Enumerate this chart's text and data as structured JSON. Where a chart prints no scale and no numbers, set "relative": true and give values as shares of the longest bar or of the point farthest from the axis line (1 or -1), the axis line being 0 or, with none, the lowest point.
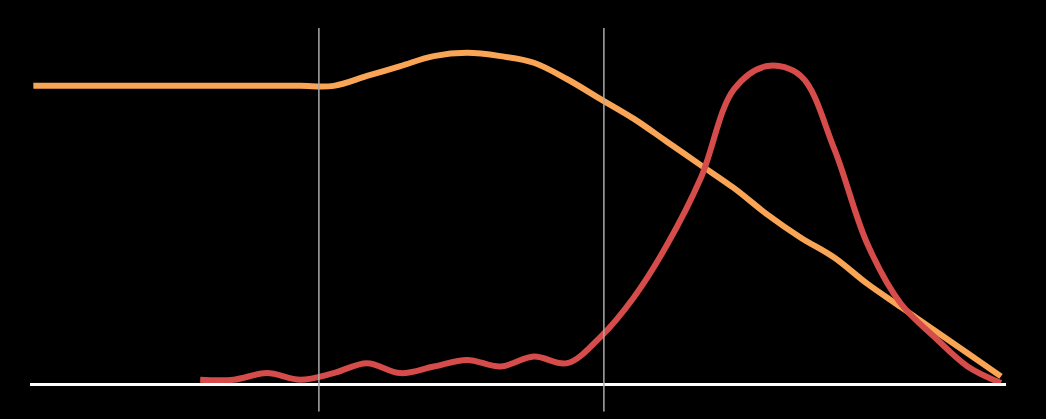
{
  "chart_data": {
    "type": "line",
    "relative": true,
    "categories": [
      null,
      null,
      null,
      null,
      null,
      null,
      null,
      null,
      null,
      null,
      null,
      null,
      null,
      null,
      null,
      null,
      null,
      null,
      null,
      null,
      null,
      null,
      null,
      null,
      null,
      null,
      null,
      null,
      null,
      null
    ],
    "series": [
      {
        "color": "#f9a555",
        "values": [
          0.9,
          0.9,
          0.9,
          0.9,
          0.9,
          0.9,
          0.9,
          0.9,
          0.9,
          0.9,
          0.93,
          0.96,
          0.99,
          1.0,
          0.99,
          0.97,
          0.92,
          0.86,
          0.8,
          0.73,
          0.66,
          0.59,
          0.51,
          0.44,
          0.38,
          0.3,
          0.23,
          0.16,
          0.09,
          0.02
        ]
      },
      {
        "color": "#d54c4a",
        "values": [
          null,
          null,
          null,
          null,
          null,
          0.01,
          0.01,
          0.03,
          0.01,
          0.03,
          0.06,
          0.03,
          0.05,
          0.07,
          0.05,
          0.08,
          0.06,
          0.14,
          0.26,
          0.42,
          0.62,
          0.89,
          0.96,
          0.93,
          0.71,
          0.42,
          0.24,
          0.14,
          0.05,
          0.0
        ]
      }
    ]
  }
}
